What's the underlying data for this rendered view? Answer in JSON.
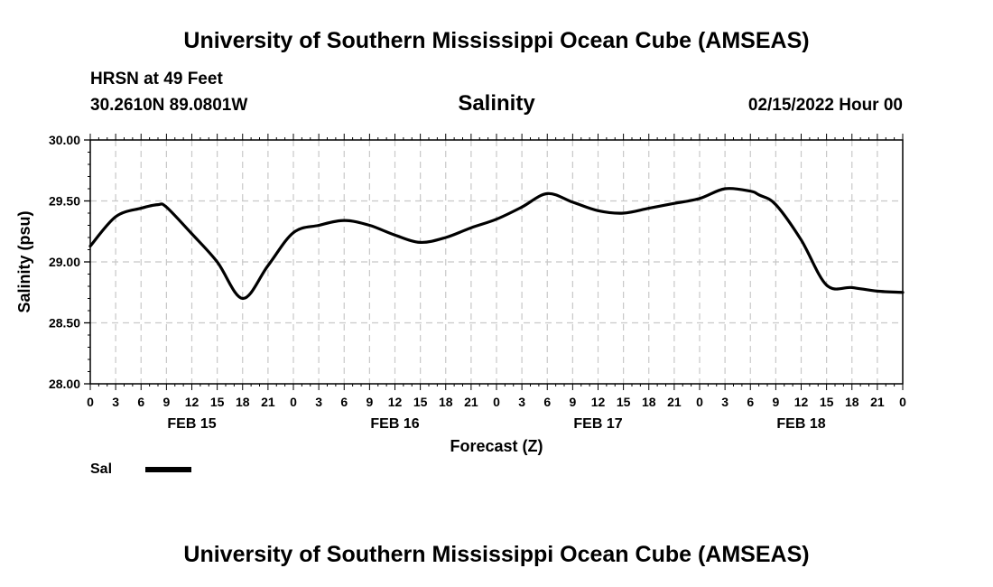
{
  "header": {
    "title": "University of Southern Mississippi Ocean Cube (AMSEAS)",
    "station": "HRSN at 49 Feet",
    "coords": "30.2610N  89.0801W",
    "chart_title": "Salinity",
    "datetime": "02/15/2022 Hour 00"
  },
  "footer": {
    "title": "University of Southern Mississippi Ocean Cube (AMSEAS)"
  },
  "legend": {
    "label": "Sal",
    "color": "#000000"
  },
  "chart_data": {
    "type": "line",
    "title": "Salinity",
    "xlabel": "Forecast (Z)",
    "ylabel": "Salinity (psu)",
    "ylim": [
      28.0,
      30.0
    ],
    "xlim": [
      0,
      96
    ],
    "grid": true,
    "yticks": [
      "28.00",
      "28.50",
      "29.00",
      "29.50",
      "30.00"
    ],
    "xtick_labels": [
      "0",
      "3",
      "6",
      "9",
      "12",
      "15",
      "18",
      "21",
      "0",
      "3",
      "6",
      "9",
      "12",
      "15",
      "18",
      "21",
      "0",
      "3",
      "6",
      "9",
      "12",
      "15",
      "18",
      "21",
      "0",
      "3",
      "6",
      "9",
      "12",
      "15",
      "18",
      "21",
      "0"
    ],
    "day_labels": [
      {
        "label": "FEB 15",
        "hour": 12
      },
      {
        "label": "FEB 16",
        "hour": 36
      },
      {
        "label": "FEB 17",
        "hour": 60
      },
      {
        "label": "FEB 18",
        "hour": 84
      }
    ],
    "series": [
      {
        "name": "Sal",
        "x": [
          0,
          3,
          6,
          8,
          9,
          12,
          15,
          18,
          21,
          24,
          27,
          30,
          33,
          36,
          39,
          42,
          45,
          48,
          51,
          54,
          57,
          60,
          63,
          66,
          69,
          72,
          75,
          78,
          79,
          81,
          84,
          87,
          90,
          93,
          96
        ],
        "values": [
          29.13,
          29.37,
          29.44,
          29.47,
          29.45,
          29.23,
          29.0,
          28.7,
          28.97,
          29.24,
          29.3,
          29.34,
          29.3,
          29.22,
          29.16,
          29.2,
          29.28,
          29.35,
          29.45,
          29.56,
          29.49,
          29.42,
          29.4,
          29.44,
          29.48,
          29.52,
          29.6,
          29.58,
          29.55,
          29.47,
          29.18,
          28.81,
          28.79,
          28.76,
          28.75
        ]
      }
    ]
  }
}
